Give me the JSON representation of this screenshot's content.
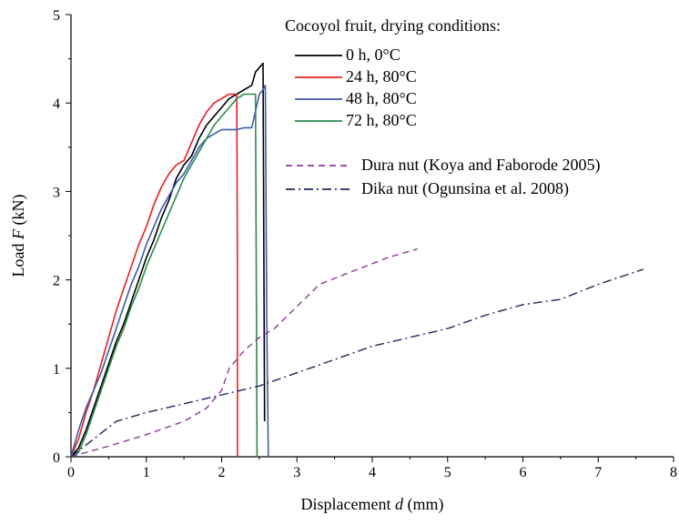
{
  "chart_data": {
    "type": "line",
    "xlabel": {
      "text": "Displacement",
      "symbol": "d",
      "unit": "(mm)"
    },
    "ylabel": {
      "text": "Load",
      "symbol": "F",
      "unit": "(kN)"
    },
    "xlim": [
      0,
      8
    ],
    "ylim": [
      0,
      5
    ],
    "xticks": [
      0,
      1,
      2,
      3,
      4,
      5,
      6,
      7,
      8
    ],
    "yticks": [
      0,
      1,
      2,
      3,
      4,
      5
    ],
    "grid": false,
    "legend_position": "top-right",
    "legend_title": "Cocoyol fruit, drying conditions:",
    "series": [
      {
        "name": "0 h,   0°C",
        "color": "#000000",
        "dash": "solid",
        "x": [
          0.0,
          0.1,
          0.2,
          0.3,
          0.4,
          0.5,
          0.6,
          0.7,
          0.8,
          0.9,
          1.0,
          1.1,
          1.2,
          1.3,
          1.4,
          1.5,
          1.6,
          1.7,
          1.8,
          1.9,
          2.0,
          2.1,
          2.2,
          2.3,
          2.4,
          2.45,
          2.5,
          2.55,
          2.56,
          2.57
        ],
        "y": [
          0.0,
          0.1,
          0.3,
          0.55,
          0.8,
          1.05,
          1.3,
          1.5,
          1.75,
          2.0,
          2.25,
          2.45,
          2.7,
          2.9,
          3.15,
          3.3,
          3.4,
          3.6,
          3.75,
          3.85,
          3.95,
          4.05,
          4.1,
          4.15,
          4.2,
          4.35,
          4.4,
          4.45,
          2.5,
          0.4
        ]
      },
      {
        "name": "24 h, 80°C",
        "color": "#e8201c",
        "dash": "solid",
        "x": [
          0.0,
          0.1,
          0.2,
          0.3,
          0.4,
          0.5,
          0.6,
          0.7,
          0.8,
          0.9,
          1.0,
          1.1,
          1.2,
          1.3,
          1.4,
          1.5,
          1.6,
          1.7,
          1.8,
          1.9,
          2.0,
          2.1,
          2.2,
          2.21,
          2.21
        ],
        "y": [
          0.0,
          0.2,
          0.5,
          0.75,
          1.05,
          1.35,
          1.65,
          1.9,
          2.15,
          2.4,
          2.6,
          2.85,
          3.05,
          3.2,
          3.3,
          3.35,
          3.55,
          3.75,
          3.9,
          4.0,
          4.05,
          4.1,
          4.1,
          2.0,
          0.0
        ]
      },
      {
        "name": "48 h, 80°C",
        "color": "#3f58b0",
        "dash": "solid",
        "x": [
          0.0,
          0.1,
          0.2,
          0.3,
          0.4,
          0.5,
          0.6,
          0.7,
          0.8,
          0.9,
          1.0,
          1.1,
          1.2,
          1.3,
          1.4,
          1.5,
          1.6,
          1.7,
          1.8,
          1.9,
          2.0,
          2.1,
          2.2,
          2.3,
          2.4,
          2.5,
          2.55,
          2.58,
          2.6,
          2.62
        ],
        "y": [
          0.0,
          0.3,
          0.55,
          0.75,
          0.95,
          1.2,
          1.45,
          1.7,
          1.95,
          2.15,
          2.4,
          2.6,
          2.8,
          2.95,
          3.1,
          3.2,
          3.35,
          3.5,
          3.6,
          3.65,
          3.7,
          3.7,
          3.7,
          3.72,
          3.72,
          4.1,
          4.15,
          4.2,
          1.5,
          0.0
        ]
      },
      {
        "name": "72 h, 80°C",
        "color": "#2b8a4e",
        "dash": "solid",
        "x": [
          0.0,
          0.1,
          0.2,
          0.3,
          0.4,
          0.5,
          0.6,
          0.7,
          0.8,
          0.9,
          1.0,
          1.1,
          1.2,
          1.3,
          1.4,
          1.5,
          1.6,
          1.7,
          1.8,
          1.9,
          2.0,
          2.1,
          2.2,
          2.3,
          2.4,
          2.45,
          2.46,
          2.47
        ],
        "y": [
          0.0,
          0.05,
          0.25,
          0.5,
          0.75,
          1.0,
          1.25,
          1.45,
          1.7,
          1.9,
          2.15,
          2.35,
          2.55,
          2.75,
          2.95,
          3.15,
          3.3,
          3.45,
          3.6,
          3.75,
          3.85,
          3.95,
          4.05,
          4.1,
          4.1,
          4.1,
          2.0,
          0.0
        ]
      },
      {
        "name": "Dura nut (Koya and Faborode 2005)",
        "color": "#8b3a9a",
        "dash": "dash",
        "x": [
          0.0,
          0.5,
          1.0,
          1.5,
          1.8,
          2.0,
          2.1,
          2.3,
          2.5,
          2.7,
          3.0,
          3.3,
          3.6,
          3.9,
          4.2,
          4.6
        ],
        "y": [
          0.0,
          0.12,
          0.25,
          0.4,
          0.55,
          0.75,
          1.0,
          1.2,
          1.35,
          1.45,
          1.7,
          1.95,
          2.05,
          2.15,
          2.25,
          2.35
        ]
      },
      {
        "name": "Dika nut (Ogunsina et al. 2008)",
        "color": "#1f2a5a",
        "dash": "dashdot",
        "x": [
          0.0,
          0.3,
          0.6,
          1.0,
          1.5,
          2.0,
          2.5,
          3.0,
          3.5,
          4.0,
          4.5,
          5.0,
          5.5,
          6.0,
          6.5,
          7.0,
          7.6
        ],
        "y": [
          0.0,
          0.2,
          0.4,
          0.5,
          0.6,
          0.7,
          0.8,
          0.95,
          1.1,
          1.25,
          1.35,
          1.45,
          1.6,
          1.72,
          1.78,
          1.95,
          2.12
        ]
      }
    ]
  }
}
